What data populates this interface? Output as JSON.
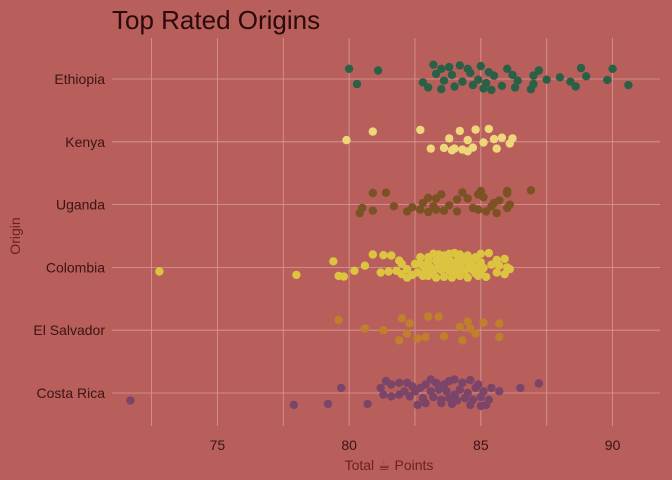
{
  "chart_data": {
    "type": "scatter",
    "title": "Top Rated Origins",
    "xlabel": "Total ☕ Points",
    "ylabel": "Origin",
    "xlim": [
      71.0,
      91.8
    ],
    "x_ticks": [
      75,
      80,
      85,
      90
    ],
    "x_minor_ticks": [
      72.5,
      77.5,
      82.5,
      87.5
    ],
    "grid": true,
    "legend": "none",
    "categories": [
      "Ethiopia",
      "Kenya",
      "Uganda",
      "Colombia",
      "El Salvador",
      "Costa Rica"
    ],
    "colors": {
      "Ethiopia": "#2a6046",
      "Kenya": "#f0d67a",
      "Uganda": "#7a5223",
      "Colombia": "#dcc441",
      "El Salvador": "#c07f2a",
      "Costa Rica": "#7a4568"
    },
    "series": [
      {
        "category": "Ethiopia",
        "points": [
          [
            80.0,
            0.3
          ],
          [
            81.1,
            0.25
          ],
          [
            83.2,
            0.42
          ],
          [
            83.5,
            0.3
          ],
          [
            83.8,
            0.35
          ],
          [
            84.2,
            0.4
          ],
          [
            84.5,
            0.3
          ],
          [
            85.0,
            0.38
          ],
          [
            85.3,
            0.2
          ],
          [
            86.0,
            0.3
          ],
          [
            87.2,
            0.25
          ],
          [
            88.8,
            0.32
          ],
          [
            90.0,
            0.3
          ],
          [
            83.3,
            0.15
          ],
          [
            83.9,
            0.12
          ],
          [
            84.6,
            0.18
          ],
          [
            85.5,
            0.1
          ],
          [
            86.2,
            0.12
          ],
          [
            87.0,
            0.1
          ],
          [
            88.0,
            0.05
          ],
          [
            89.0,
            0.08
          ],
          [
            82.8,
            -0.1
          ],
          [
            83.6,
            -0.05
          ],
          [
            84.3,
            -0.08
          ],
          [
            84.9,
            -0.02
          ],
          [
            85.2,
            -0.12
          ],
          [
            86.4,
            -0.05
          ],
          [
            87.5,
            -0.02
          ],
          [
            88.4,
            -0.08
          ],
          [
            89.8,
            -0.03
          ],
          [
            80.3,
            -0.15
          ],
          [
            83.0,
            -0.25
          ],
          [
            84.0,
            -0.22
          ],
          [
            84.7,
            -0.18
          ],
          [
            85.1,
            -0.28
          ],
          [
            85.8,
            -0.2
          ],
          [
            86.3,
            -0.25
          ],
          [
            87.0,
            -0.15
          ],
          [
            88.6,
            -0.22
          ],
          [
            90.6,
            -0.18
          ],
          [
            83.5,
            -0.3
          ],
          [
            85.4,
            -0.32
          ],
          [
            86.9,
            -0.3
          ]
        ]
      },
      {
        "category": "Kenya",
        "points": [
          [
            80.9,
            0.3
          ],
          [
            82.7,
            0.35
          ],
          [
            84.2,
            0.32
          ],
          [
            84.8,
            0.36
          ],
          [
            85.3,
            0.38
          ],
          [
            79.9,
            0.05
          ],
          [
            83.8,
            0.1
          ],
          [
            84.5,
            0.05
          ],
          [
            85.5,
            0.08
          ],
          [
            85.8,
            0.12
          ],
          [
            86.2,
            0.1
          ],
          [
            86.1,
            -0.05
          ],
          [
            85.1,
            -0.02
          ],
          [
            83.1,
            -0.2
          ],
          [
            83.6,
            -0.18
          ],
          [
            84.0,
            -0.2
          ],
          [
            84.7,
            -0.17
          ],
          [
            84.3,
            -0.23
          ],
          [
            85.6,
            -0.2
          ],
          [
            83.9,
            -0.25
          ],
          [
            84.5,
            -0.28
          ]
        ]
      },
      {
        "category": "Uganda",
        "points": [
          [
            80.9,
            0.34
          ],
          [
            81.4,
            0.35
          ],
          [
            83.5,
            0.3
          ],
          [
            84.3,
            0.36
          ],
          [
            84.9,
            0.3
          ],
          [
            85.0,
            0.4
          ],
          [
            86.0,
            0.4
          ],
          [
            86.9,
            0.42
          ],
          [
            83.0,
            0.2
          ],
          [
            83.3,
            0.18
          ],
          [
            84.1,
            0.15
          ],
          [
            84.5,
            0.18
          ],
          [
            85.1,
            0.22
          ],
          [
            85.7,
            0.12
          ],
          [
            86.0,
            0.33
          ],
          [
            85.5,
            0.05
          ],
          [
            80.5,
            -0.1
          ],
          [
            81.7,
            -0.05
          ],
          [
            82.4,
            -0.08
          ],
          [
            82.8,
            0.05
          ],
          [
            83.2,
            -0.05
          ],
          [
            83.8,
            -0.02
          ],
          [
            84.7,
            -0.1
          ],
          [
            85.4,
            -0.05
          ],
          [
            86.1,
            0.0
          ],
          [
            80.4,
            -0.25
          ],
          [
            80.9,
            -0.18
          ],
          [
            82.2,
            -0.2
          ],
          [
            82.7,
            -0.15
          ],
          [
            83.0,
            -0.22
          ],
          [
            83.3,
            -0.15
          ],
          [
            83.6,
            -0.18
          ],
          [
            84.1,
            -0.2
          ],
          [
            84.9,
            -0.15
          ],
          [
            85.2,
            -0.2
          ],
          [
            85.6,
            -0.25
          ],
          [
            86.0,
            -0.1
          ]
        ]
      },
      {
        "category": "Colombia",
        "points": [
          [
            72.8,
            -0.12
          ],
          [
            78.0,
            -0.22
          ],
          [
            79.4,
            0.18
          ],
          [
            79.6,
            -0.25
          ],
          [
            79.8,
            -0.27
          ],
          [
            80.2,
            -0.1
          ],
          [
            80.6,
            0.05
          ],
          [
            80.9,
            0.38
          ],
          [
            81.3,
            0.36
          ],
          [
            81.6,
            0.35
          ],
          [
            81.9,
            0.2
          ],
          [
            82.0,
            0.1
          ],
          [
            82.2,
            -0.05
          ],
          [
            82.5,
            0.1
          ],
          [
            82.7,
            0.3
          ],
          [
            81.2,
            -0.15
          ],
          [
            81.5,
            -0.12
          ],
          [
            81.8,
            -0.1
          ],
          [
            82.0,
            -0.2
          ],
          [
            82.2,
            -0.3
          ],
          [
            82.4,
            -0.22
          ],
          [
            82.6,
            -0.15
          ],
          [
            82.8,
            -0.25
          ],
          [
            83.0,
            0.3
          ],
          [
            83.2,
            0.4
          ],
          [
            83.4,
            0.38
          ],
          [
            83.6,
            0.35
          ],
          [
            83.8,
            0.4
          ],
          [
            84.0,
            0.42
          ],
          [
            84.2,
            0.38
          ],
          [
            84.5,
            0.35
          ],
          [
            84.8,
            0.3
          ],
          [
            85.0,
            0.4
          ],
          [
            85.3,
            0.42
          ],
          [
            85.6,
            0.22
          ],
          [
            85.9,
            0.25
          ],
          [
            83.0,
            0.18
          ],
          [
            83.3,
            0.2
          ],
          [
            83.5,
            0.15
          ],
          [
            83.8,
            0.22
          ],
          [
            84.1,
            0.2
          ],
          [
            84.4,
            0.18
          ],
          [
            84.7,
            0.2
          ],
          [
            85.0,
            0.15
          ],
          [
            85.4,
            0.08
          ],
          [
            85.7,
            0.05
          ],
          [
            82.8,
            0.05
          ],
          [
            83.1,
            0.0
          ],
          [
            83.4,
            0.05
          ],
          [
            83.6,
            -0.02
          ],
          [
            83.9,
            0.02
          ],
          [
            84.2,
            0.05
          ],
          [
            84.5,
            -0.03
          ],
          [
            84.8,
            0.0
          ],
          [
            85.1,
            -0.02
          ],
          [
            82.9,
            -0.1
          ],
          [
            83.2,
            -0.12
          ],
          [
            83.5,
            -0.08
          ],
          [
            83.8,
            -0.1
          ],
          [
            84.1,
            -0.12
          ],
          [
            84.4,
            -0.1
          ],
          [
            84.7,
            -0.08
          ],
          [
            85.0,
            -0.12
          ],
          [
            83.0,
            -0.25
          ],
          [
            83.3,
            -0.3
          ],
          [
            83.6,
            -0.28
          ],
          [
            83.9,
            -0.3
          ],
          [
            84.2,
            -0.25
          ],
          [
            84.5,
            -0.3
          ],
          [
            84.9,
            -0.25
          ],
          [
            85.2,
            -0.28
          ],
          [
            86.1,
            -0.05
          ],
          [
            86.0,
            0.0
          ],
          [
            85.9,
            -0.2
          ],
          [
            85.6,
            -0.15
          ],
          [
            83.4,
            0.28
          ],
          [
            83.7,
            0.12
          ],
          [
            84.0,
            0.08
          ],
          [
            84.3,
            0.3
          ],
          [
            84.6,
            0.1
          ],
          [
            83.1,
            -0.18
          ],
          [
            84.0,
            -0.18
          ],
          [
            84.8,
            -0.18
          ],
          [
            82.7,
            0.12
          ],
          [
            82.9,
            -0.05
          ]
        ]
      },
      {
        "category": "El Salvador",
        "points": [
          [
            79.6,
            0.3
          ],
          [
            82.0,
            0.35
          ],
          [
            83.0,
            0.4
          ],
          [
            83.4,
            0.4
          ],
          [
            84.5,
            0.25
          ],
          [
            85.1,
            0.22
          ],
          [
            80.6,
            0.05
          ],
          [
            81.3,
            0.0
          ],
          [
            82.3,
            0.2
          ],
          [
            84.2,
            0.1
          ],
          [
            84.6,
            0.05
          ],
          [
            85.7,
            0.2
          ],
          [
            82.2,
            -0.1
          ],
          [
            82.6,
            -0.25
          ],
          [
            83.6,
            -0.18
          ],
          [
            84.8,
            -0.1
          ],
          [
            85.7,
            -0.2
          ],
          [
            81.9,
            -0.3
          ],
          [
            84.3,
            -0.3
          ],
          [
            82.9,
            -0.2
          ]
        ]
      },
      {
        "category": "Costa Rica",
        "points": [
          [
            71.7,
            -0.22
          ],
          [
            77.9,
            -0.35
          ],
          [
            79.2,
            -0.32
          ],
          [
            79.7,
            0.15
          ],
          [
            80.7,
            -0.32
          ],
          [
            81.2,
            0.15
          ],
          [
            81.4,
            0.35
          ],
          [
            81.6,
            0.25
          ],
          [
            81.9,
            0.3
          ],
          [
            82.2,
            0.3
          ],
          [
            82.4,
            0.2
          ],
          [
            82.7,
            0.15
          ],
          [
            82.9,
            0.25
          ],
          [
            81.3,
            -0.05
          ],
          [
            81.6,
            -0.1
          ],
          [
            81.9,
            -0.05
          ],
          [
            82.1,
            0.05
          ],
          [
            82.3,
            -0.1
          ],
          [
            82.5,
            0.05
          ],
          [
            82.8,
            -0.15
          ],
          [
            82.6,
            -0.35
          ],
          [
            82.9,
            -0.3
          ],
          [
            83.1,
            0.4
          ],
          [
            83.3,
            0.3
          ],
          [
            83.6,
            0.25
          ],
          [
            83.8,
            0.35
          ],
          [
            84.0,
            0.4
          ],
          [
            84.3,
            0.3
          ],
          [
            84.6,
            0.38
          ],
          [
            84.9,
            0.25
          ],
          [
            83.1,
            0.05
          ],
          [
            83.4,
            0.1
          ],
          [
            83.7,
            0.05
          ],
          [
            84.0,
            -0.05
          ],
          [
            84.2,
            0.1
          ],
          [
            84.5,
            0.0
          ],
          [
            84.8,
            0.15
          ],
          [
            85.1,
            0.05
          ],
          [
            83.2,
            -0.12
          ],
          [
            83.5,
            -0.2
          ],
          [
            83.8,
            -0.15
          ],
          [
            84.1,
            -0.22
          ],
          [
            84.4,
            -0.15
          ],
          [
            84.7,
            -0.2
          ],
          [
            85.0,
            -0.12
          ],
          [
            85.3,
            -0.2
          ],
          [
            83.5,
            -0.3
          ],
          [
            83.9,
            -0.32
          ],
          [
            84.6,
            -0.35
          ],
          [
            85.0,
            -0.38
          ],
          [
            85.2,
            -0.35
          ],
          [
            85.4,
            0.15
          ],
          [
            85.7,
            0.05
          ],
          [
            86.5,
            0.15
          ],
          [
            87.2,
            0.28
          ]
        ]
      }
    ]
  }
}
